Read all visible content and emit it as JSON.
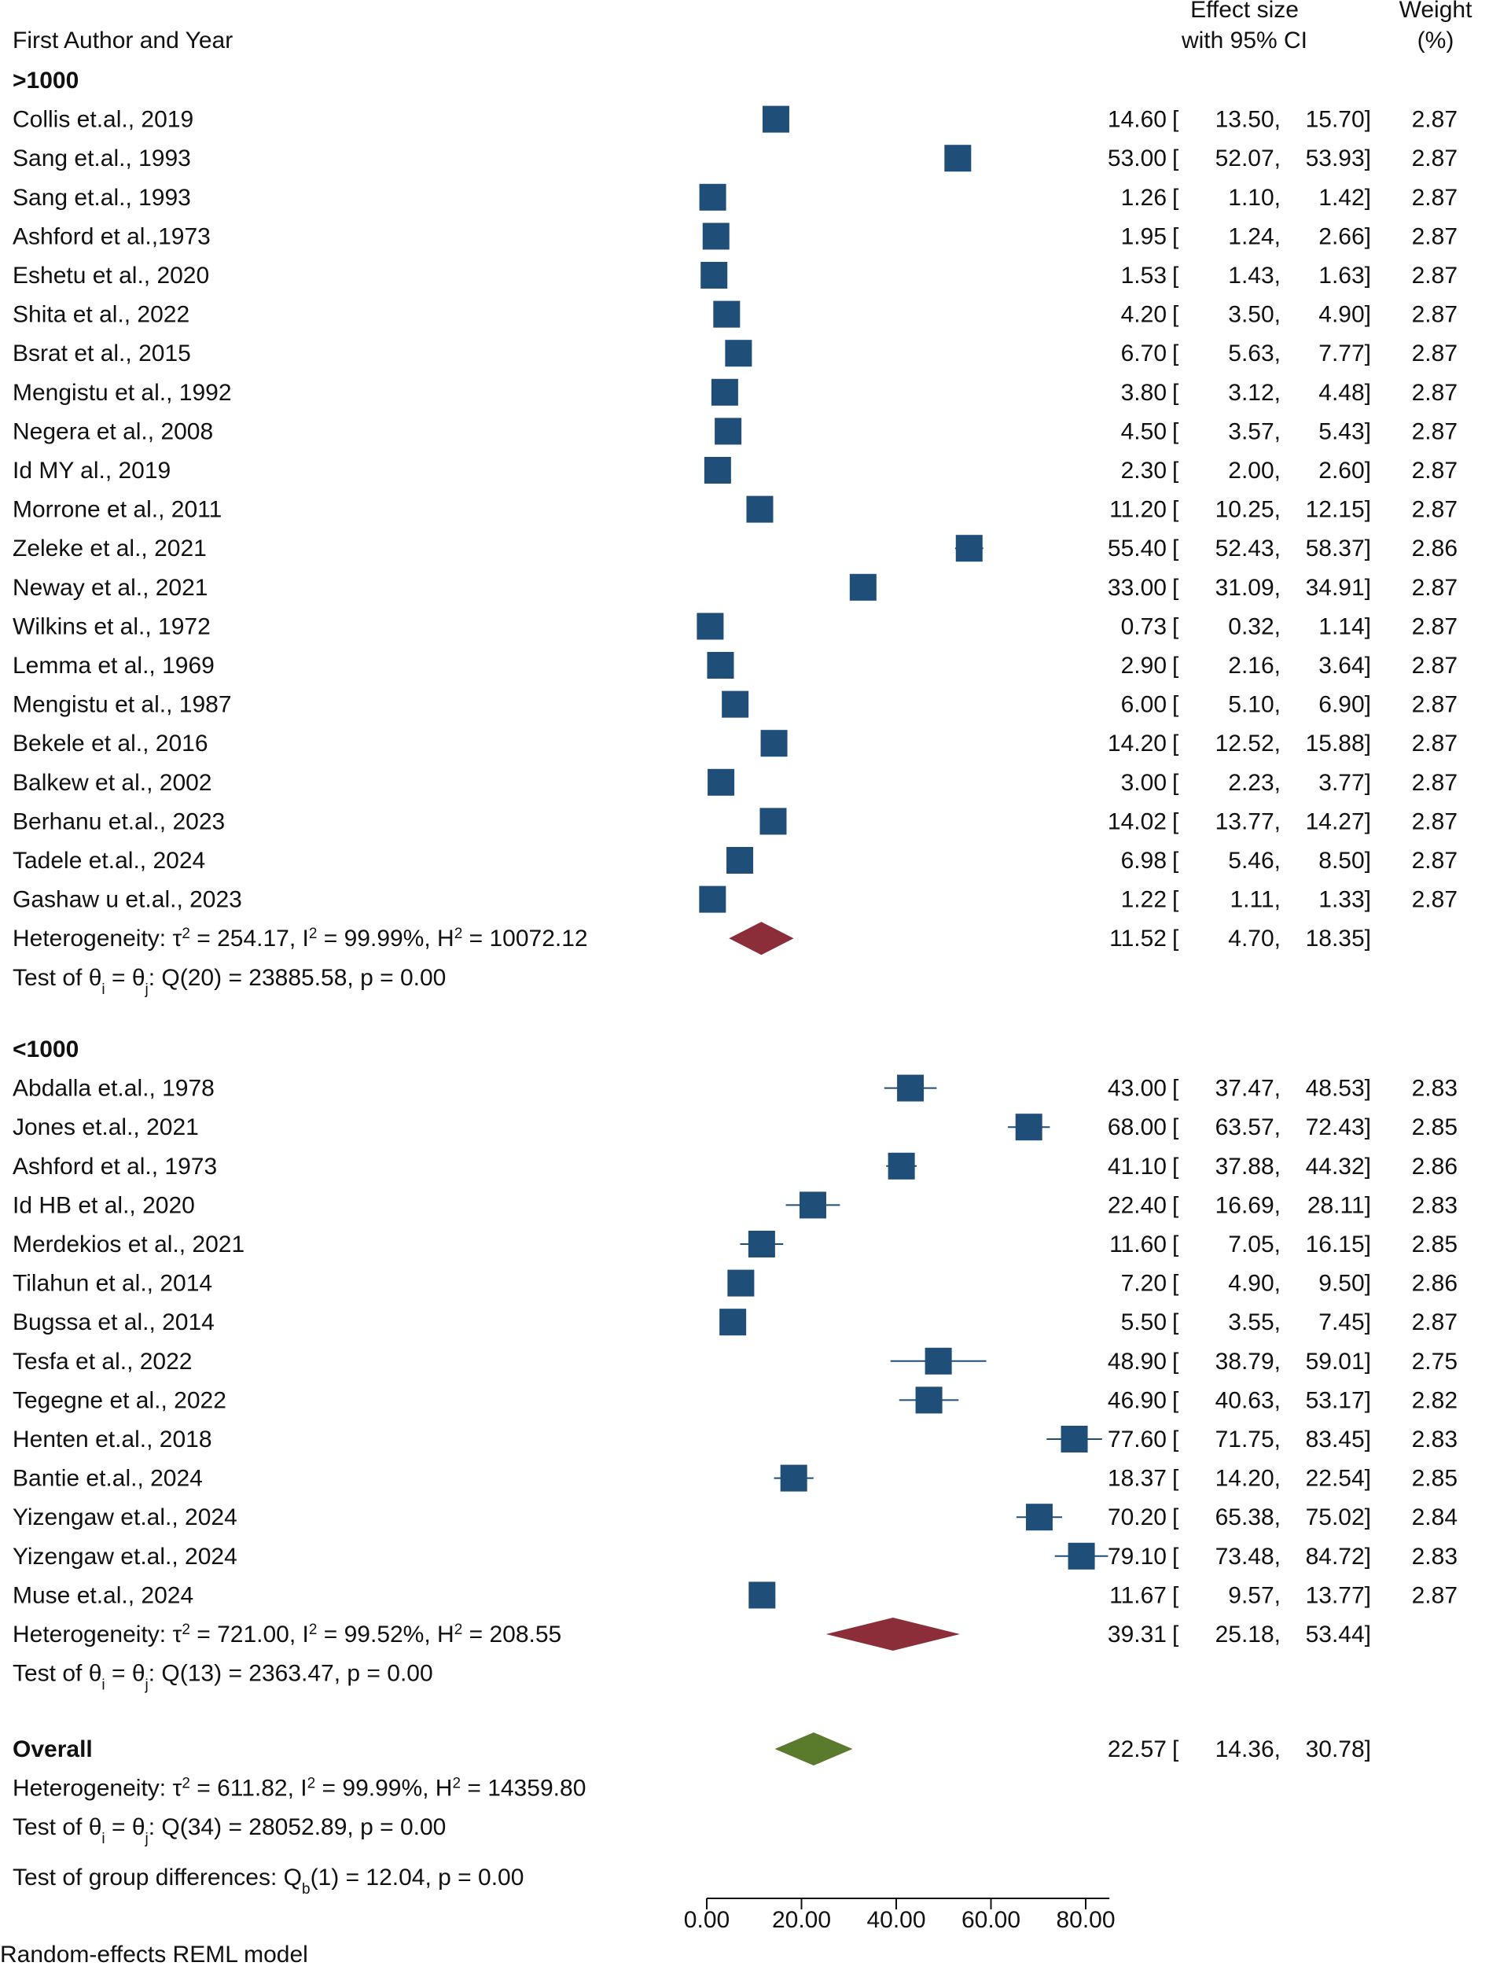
{
  "chart_data": {
    "type": "forest",
    "model_note": "Random-effects REML model",
    "headers": {
      "study": "First Author and Year",
      "effect_line1": "Effect size",
      "effect_line2": "with 95% CI",
      "weight_line1": "Weight",
      "weight_line2": "(%)"
    },
    "x_axis": {
      "min": 0,
      "max": 85,
      "ticks": [
        0,
        20,
        40,
        60,
        80
      ],
      "tick_labels": [
        "0.00",
        "20.00",
        "40.00",
        "60.00",
        "80.00"
      ]
    },
    "colors": {
      "study_marker": "#1f4e79",
      "subgroup_diamond": "#8b2e3a",
      "overall_diamond": "#5a7a2c",
      "ci_line": "#1f4e79"
    },
    "groups": [
      {
        "label": ">1000",
        "studies": [
          {
            "study": "Collis et.al., 2019",
            "es": 14.6,
            "lo": 13.5,
            "hi": 15.7,
            "es_text": "14.60",
            "lo_text": "13.50",
            "hi_text": "15.70",
            "weight": "2.87"
          },
          {
            "study": "Sang et.al., 1993",
            "es": 53.0,
            "lo": 52.07,
            "hi": 53.93,
            "es_text": "53.00",
            "lo_text": "52.07",
            "hi_text": "53.93",
            "weight": "2.87"
          },
          {
            "study": "Sang et.al., 1993",
            "es": 1.26,
            "lo": 1.1,
            "hi": 1.42,
            "es_text": "1.26",
            "lo_text": "1.10",
            "hi_text": "1.42",
            "weight": "2.87"
          },
          {
            "study": "Ashford et al.,1973",
            "es": 1.95,
            "lo": 1.24,
            "hi": 2.66,
            "es_text": "1.95",
            "lo_text": "1.24",
            "hi_text": "2.66",
            "weight": "2.87"
          },
          {
            "study": "Eshetu et al., 2020",
            "es": 1.53,
            "lo": 1.43,
            "hi": 1.63,
            "es_text": "1.53",
            "lo_text": "1.43",
            "hi_text": "1.63",
            "weight": "2.87"
          },
          {
            "study": "Shita et al., 2022",
            "es": 4.2,
            "lo": 3.5,
            "hi": 4.9,
            "es_text": "4.20",
            "lo_text": "3.50",
            "hi_text": "4.90",
            "weight": "2.87"
          },
          {
            "study": "Bsrat et al., 2015",
            "es": 6.7,
            "lo": 5.63,
            "hi": 7.77,
            "es_text": "6.70",
            "lo_text": "5.63",
            "hi_text": "7.77",
            "weight": "2.87"
          },
          {
            "study": "Mengistu et al., 1992",
            "es": 3.8,
            "lo": 3.12,
            "hi": 4.48,
            "es_text": "3.80",
            "lo_text": "3.12",
            "hi_text": "4.48",
            "weight": "2.87"
          },
          {
            "study": "Negera et al., 2008",
            "es": 4.5,
            "lo": 3.57,
            "hi": 5.43,
            "es_text": "4.50",
            "lo_text": "3.57",
            "hi_text": "5.43",
            "weight": "2.87"
          },
          {
            "study": "Id MY al., 2019",
            "es": 2.3,
            "lo": 2.0,
            "hi": 2.6,
            "es_text": "2.30",
            "lo_text": "2.00",
            "hi_text": "2.60",
            "weight": "2.87"
          },
          {
            "study": "Morrone et al., 2011",
            "es": 11.2,
            "lo": 10.25,
            "hi": 12.15,
            "es_text": "11.20",
            "lo_text": "10.25",
            "hi_text": "12.15",
            "weight": "2.87"
          },
          {
            "study": "Zeleke et al., 2021",
            "es": 55.4,
            "lo": 52.43,
            "hi": 58.37,
            "es_text": "55.40",
            "lo_text": "52.43",
            "hi_text": "58.37",
            "weight": "2.86"
          },
          {
            "study": "Neway et al., 2021",
            "es": 33.0,
            "lo": 31.09,
            "hi": 34.91,
            "es_text": "33.00",
            "lo_text": "31.09",
            "hi_text": "34.91",
            "weight": "2.87"
          },
          {
            "study": "Wilkins et al., 1972",
            "es": 0.73,
            "lo": 0.32,
            "hi": 1.14,
            "es_text": "0.73",
            "lo_text": "0.32",
            "hi_text": "1.14",
            "weight": "2.87"
          },
          {
            "study": "Lemma et al., 1969",
            "es": 2.9,
            "lo": 2.16,
            "hi": 3.64,
            "es_text": "2.90",
            "lo_text": "2.16",
            "hi_text": "3.64",
            "weight": "2.87"
          },
          {
            "study": "Mengistu et al., 1987",
            "es": 6.0,
            "lo": 5.1,
            "hi": 6.9,
            "es_text": "6.00",
            "lo_text": "5.10",
            "hi_text": "6.90",
            "weight": "2.87"
          },
          {
            "study": "Bekele et al., 2016",
            "es": 14.2,
            "lo": 12.52,
            "hi": 15.88,
            "es_text": "14.20",
            "lo_text": "12.52",
            "hi_text": "15.88",
            "weight": "2.87"
          },
          {
            "study": "Balkew et al., 2002",
            "es": 3.0,
            "lo": 2.23,
            "hi": 3.77,
            "es_text": "3.00",
            "lo_text": "2.23",
            "hi_text": "3.77",
            "weight": "2.87"
          },
          {
            "study": "Berhanu et.al., 2023",
            "es": 14.02,
            "lo": 13.77,
            "hi": 14.27,
            "es_text": "14.02",
            "lo_text": "13.77",
            "hi_text": "14.27",
            "weight": "2.87"
          },
          {
            "study": "Tadele et.al., 2024",
            "es": 6.98,
            "lo": 5.46,
            "hi": 8.5,
            "es_text": "6.98",
            "lo_text": "5.46",
            "hi_text": "8.50",
            "weight": "2.87"
          },
          {
            "study": "Gashaw u et.al., 2023",
            "es": 1.22,
            "lo": 1.11,
            "hi": 1.33,
            "es_text": "1.22",
            "lo_text": "1.11",
            "hi_text": "1.33",
            "weight": "2.87"
          }
        ],
        "summary": {
          "es": 11.52,
          "lo": 4.7,
          "hi": 18.35,
          "es_text": "11.52",
          "lo_text": "4.70",
          "hi_text": "18.35",
          "heterogeneity": {
            "tau2": "254.17",
            "i2": "99.99%",
            "h2": "10072.12"
          },
          "test": {
            "q_df": "20",
            "q_value": "23885.58",
            "p": "0.00"
          }
        }
      },
      {
        "label": "<1000",
        "studies": [
          {
            "study": "Abdalla et.al., 1978",
            "es": 43.0,
            "lo": 37.47,
            "hi": 48.53,
            "es_text": "43.00",
            "lo_text": "37.47",
            "hi_text": "48.53",
            "weight": "2.83"
          },
          {
            "study": "Jones et.al., 2021",
            "es": 68.0,
            "lo": 63.57,
            "hi": 72.43,
            "es_text": "68.00",
            "lo_text": "63.57",
            "hi_text": "72.43",
            "weight": "2.85"
          },
          {
            "study": "Ashford et al., 1973",
            "es": 41.1,
            "lo": 37.88,
            "hi": 44.32,
            "es_text": "41.10",
            "lo_text": "37.88",
            "hi_text": "44.32",
            "weight": "2.86"
          },
          {
            "study": "Id HB et al., 2020",
            "es": 22.4,
            "lo": 16.69,
            "hi": 28.11,
            "es_text": "22.40",
            "lo_text": "16.69",
            "hi_text": "28.11",
            "weight": "2.83"
          },
          {
            "study": "Merdekios et al., 2021",
            "es": 11.6,
            "lo": 7.05,
            "hi": 16.15,
            "es_text": "11.60",
            "lo_text": "7.05",
            "hi_text": "16.15",
            "weight": "2.85"
          },
          {
            "study": "Tilahun et al., 2014",
            "es": 7.2,
            "lo": 4.9,
            "hi": 9.5,
            "es_text": "7.20",
            "lo_text": "4.90",
            "hi_text": "9.50",
            "weight": "2.86"
          },
          {
            "study": "Bugssa et al., 2014",
            "es": 5.5,
            "lo": 3.55,
            "hi": 7.45,
            "es_text": "5.50",
            "lo_text": "3.55",
            "hi_text": "7.45",
            "weight": "2.87"
          },
          {
            "study": "Tesfa et al., 2022",
            "es": 48.9,
            "lo": 38.79,
            "hi": 59.01,
            "es_text": "48.90",
            "lo_text": "38.79",
            "hi_text": "59.01",
            "weight": "2.75"
          },
          {
            "study": "Tegegne et al., 2022",
            "es": 46.9,
            "lo": 40.63,
            "hi": 53.17,
            "es_text": "46.90",
            "lo_text": "40.63",
            "hi_text": "53.17",
            "weight": "2.82"
          },
          {
            "study": "Henten et.al., 2018",
            "es": 77.6,
            "lo": 71.75,
            "hi": 83.45,
            "es_text": "77.60",
            "lo_text": "71.75",
            "hi_text": "83.45",
            "weight": "2.83"
          },
          {
            "study": "Bantie et.al., 2024",
            "es": 18.37,
            "lo": 14.2,
            "hi": 22.54,
            "es_text": "18.37",
            "lo_text": "14.20",
            "hi_text": "22.54",
            "weight": "2.85"
          },
          {
            "study": "Yizengaw et.al., 2024",
            "es": 70.2,
            "lo": 65.38,
            "hi": 75.02,
            "es_text": "70.20",
            "lo_text": "65.38",
            "hi_text": "75.02",
            "weight": "2.84"
          },
          {
            "study": "Yizengaw et.al., 2024",
            "es": 79.1,
            "lo": 73.48,
            "hi": 84.72,
            "es_text": "79.10",
            "lo_text": "73.48",
            "hi_text": "84.72",
            "weight": "2.83"
          },
          {
            "study": "Muse et.al., 2024",
            "es": 11.67,
            "lo": 9.57,
            "hi": 13.77,
            "es_text": "11.67",
            "lo_text": "9.57",
            "hi_text": "13.77",
            "weight": "2.87"
          }
        ],
        "summary": {
          "es": 39.31,
          "lo": 25.18,
          "hi": 53.44,
          "es_text": "39.31",
          "lo_text": "25.18",
          "hi_text": "53.44",
          "heterogeneity": {
            "tau2": "721.00",
            "i2": "99.52%",
            "h2": "208.55"
          },
          "test": {
            "q_df": "13",
            "q_value": "2363.47",
            "p": "0.00"
          }
        }
      }
    ],
    "overall": {
      "label": "Overall",
      "es": 22.57,
      "lo": 14.36,
      "hi": 30.78,
      "es_text": "22.57",
      "lo_text": "14.36",
      "hi_text": "30.78",
      "heterogeneity": {
        "tau2": "611.82",
        "i2": "99.99%",
        "h2": "14359.80"
      },
      "test": {
        "q_df": "34",
        "q_value": "28052.89",
        "p": "0.00"
      },
      "group_test": {
        "df": "1",
        "q_value": "12.04",
        "p": "0.00"
      }
    }
  }
}
